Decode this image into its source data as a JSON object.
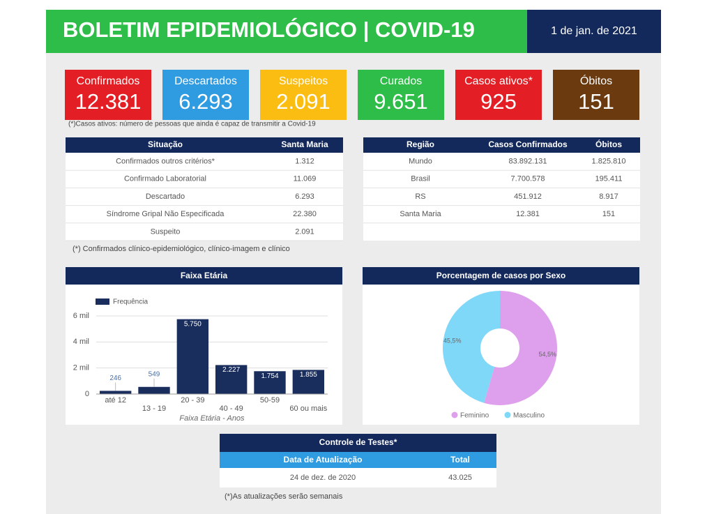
{
  "header": {
    "title": "BOLETIM EPIDEMIOLÓGICO | COVID-19",
    "date": "1 de jan. de 2021"
  },
  "cards": [
    {
      "label": "Confirmados",
      "value": "12.381",
      "color": "#e31e24"
    },
    {
      "label": "Descartados",
      "value": "6.293",
      "color": "#2f9be0"
    },
    {
      "label": "Suspeitos",
      "value": "2.091",
      "color": "#fbbd12"
    },
    {
      "label": "Curados",
      "value": "9.651",
      "color": "#2dbd48"
    },
    {
      "label": "Casos ativos*",
      "value": "925",
      "color": "#e31e24"
    },
    {
      "label": "Óbitos",
      "value": "151",
      "color": "#6b3a0f"
    }
  ],
  "notes": [
    "(*)Casos ativos: número de pessoas que ainda é capaz de transmitir a Covid-19",
    "(*) Confirmados clínico-epidemiológico, clínico-imagem e clínico",
    "(*)As atualizações serão semanais"
  ],
  "tables": [
    {
      "headers": [
        "Situação",
        "Santa Maria"
      ],
      "rows": [
        [
          "Confirmados outros critérios*",
          "1.312"
        ],
        [
          "Confirmado Laboratorial",
          "11.069"
        ],
        [
          "Descartado",
          "6.293"
        ],
        [
          "Síndrome Gripal Não Especificada",
          "22.380"
        ],
        [
          "Suspeito",
          "2.091"
        ]
      ]
    },
    {
      "headers": [
        "Região",
        "Casos Confirmados",
        "Óbitos"
      ],
      "rows": [
        [
          "Mundo",
          "83.892.131",
          "1.825.810"
        ],
        [
          "Brasil",
          "7.700.578",
          "195.411"
        ],
        [
          "RS",
          "451.912",
          "8.917"
        ],
        [
          "Santa Maria",
          "12.381",
          "151"
        ]
      ]
    },
    {
      "title": "Controle de Testes*",
      "headers": [
        "Data de Atualização",
        "Total"
      ],
      "rows": [
        [
          "24 de dez. de 2020",
          "43.025"
        ]
      ]
    }
  ],
  "chart_data": [
    {
      "type": "bar",
      "title": "Faixa Etária",
      "x_label": "Faixa Etária - Anos",
      "categories": [
        "até 12",
        "13 - 19",
        "20 - 39",
        "40 - 49",
        "50-59",
        "60 ou mais"
      ],
      "series": [
        {
          "name": "Frequência",
          "color": "#1a2e5e",
          "values": [
            246,
            549,
            5750,
            2227,
            1754,
            1855
          ],
          "value_labels": [
            "246",
            "549",
            "5.750",
            "2.227",
            "1.754",
            "1.855"
          ]
        }
      ],
      "ylim": [
        0,
        6000
      ],
      "yticks": [
        0,
        {
          "value": 2000,
          "label": "2 mil"
        },
        {
          "value": 4000,
          "label": "4 mil"
        },
        {
          "value": 6000,
          "label": "6 mil"
        }
      ],
      "grid": true,
      "legend": "top-left"
    },
    {
      "type": "pie",
      "title": "Porcentagem de casos por Sexo",
      "donut": true,
      "categories": [
        "Feminino",
        "Masculino"
      ],
      "values": [
        54.5,
        45.5
      ],
      "value_labels": [
        "54,5%",
        "45,5%"
      ],
      "colors": [
        "#de9fec",
        "#80d8f8"
      ],
      "legend": "bottom"
    }
  ]
}
